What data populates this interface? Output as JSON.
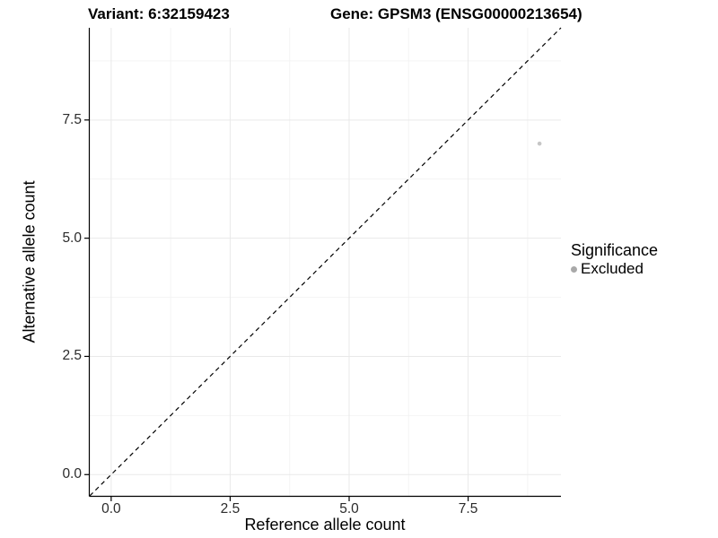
{
  "figure": {
    "title_left": "Variant: 6:32159423",
    "title_right": "Gene: GPSM3 (ENSG00000213654)"
  },
  "chart_data": {
    "type": "scatter",
    "title": "Variant: 6:32159423   Gene: GPSM3 (ENSG00000213654)",
    "xlabel": "Reference allele count",
    "ylabel": "Alternative allele count",
    "xlim": [
      -0.45,
      9.45
    ],
    "ylim": [
      -0.45,
      9.45
    ],
    "x_ticks": [
      0.0,
      2.5,
      5.0,
      7.5
    ],
    "y_ticks": [
      0.0,
      2.5,
      5.0,
      7.5
    ],
    "x_tick_labels": [
      "0.0",
      "2.5",
      "5.0",
      "7.5"
    ],
    "y_tick_labels": [
      "0.0",
      "2.5",
      "5.0",
      "7.5"
    ],
    "x_minor_ticks": [
      1.25,
      3.75,
      6.25,
      8.75
    ],
    "y_minor_ticks": [
      1.25,
      3.75,
      6.25,
      8.75
    ],
    "grid": true,
    "series": [
      {
        "name": "Excluded",
        "points": [
          {
            "x": 9,
            "y": 7
          }
        ]
      }
    ],
    "reference_line": {
      "kind": "diagonal y=x",
      "style": "dashed",
      "color": "#000000"
    },
    "legend": {
      "title": "Significance",
      "position": "right",
      "entries": [
        {
          "label": "Excluded",
          "color": "#bdbdbd"
        }
      ]
    }
  },
  "colors": {
    "background": "#ffffff",
    "axis_line": "#000000",
    "tick_mark": "#000000",
    "tick_label": "#2b2b2b",
    "grid_major": "#e9e9e9",
    "grid_minor": "#f4f4f4",
    "point_fill": "#c6c6c6",
    "legend_marker": "#a9a9a9",
    "dashed_line": "#000000"
  }
}
